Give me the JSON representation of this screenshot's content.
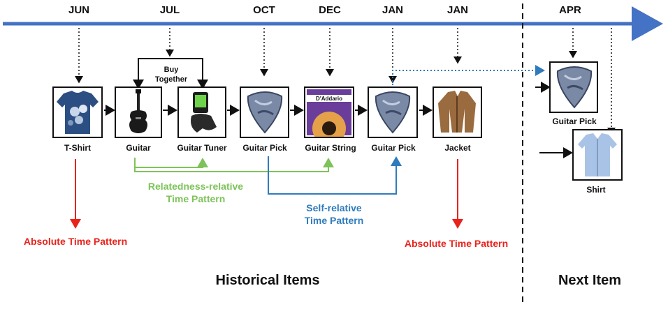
{
  "months": [
    {
      "label": "JUN"
    },
    {
      "label": "JUL"
    },
    {
      "label": "OCT"
    },
    {
      "label": "DEC"
    },
    {
      "label": "JAN"
    },
    {
      "label": "JAN"
    },
    {
      "label": "APR"
    }
  ],
  "items": {
    "tshirt": "T-Shirt",
    "guitar": "Guitar",
    "tuner": "Guitar Tuner",
    "pick1": "Guitar Pick",
    "string": "Guitar String",
    "pick2": "Guitar Pick",
    "jacket": "Jacket",
    "pick_next": "Guitar Pick",
    "shirt": "Shirt"
  },
  "annotations": {
    "buy_together": "Buy\nTogether",
    "relatedness": "Relatedness-relative\nTime Pattern",
    "self": "Self-relative\nTime Pattern",
    "absolute_left": "Absolute Time Pattern",
    "absolute_right": "Absolute Time Pattern"
  },
  "sections": {
    "historical": "Historical Items",
    "next": "Next Item"
  },
  "product_text": {
    "daddario": "D'Addario"
  },
  "colors": {
    "timeline": "#4472c4",
    "green": "#7ec35a",
    "blue": "#2f7bbd",
    "red": "#e8231c",
    "dotted_blue": "#2f7bbd"
  }
}
